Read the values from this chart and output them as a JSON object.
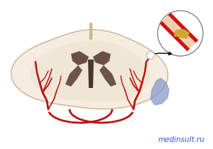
{
  "bg_color": "#ffffff",
  "brain_color": "#f5ede0",
  "brain_edge_color": "#c8b090",
  "ventricle_color": "#5a4035",
  "artery_color": "#bb1111",
  "infarct_color": "#8899cc",
  "infarct_alpha": 0.75,
  "vessel_red": "#cc1111",
  "vessel_inner": "#f0d0b0",
  "plaque_color": "#d4a830",
  "watermark_text": "medinsult.ru",
  "watermark_color": "#3355cc",
  "watermark_fontsize": 7.5
}
